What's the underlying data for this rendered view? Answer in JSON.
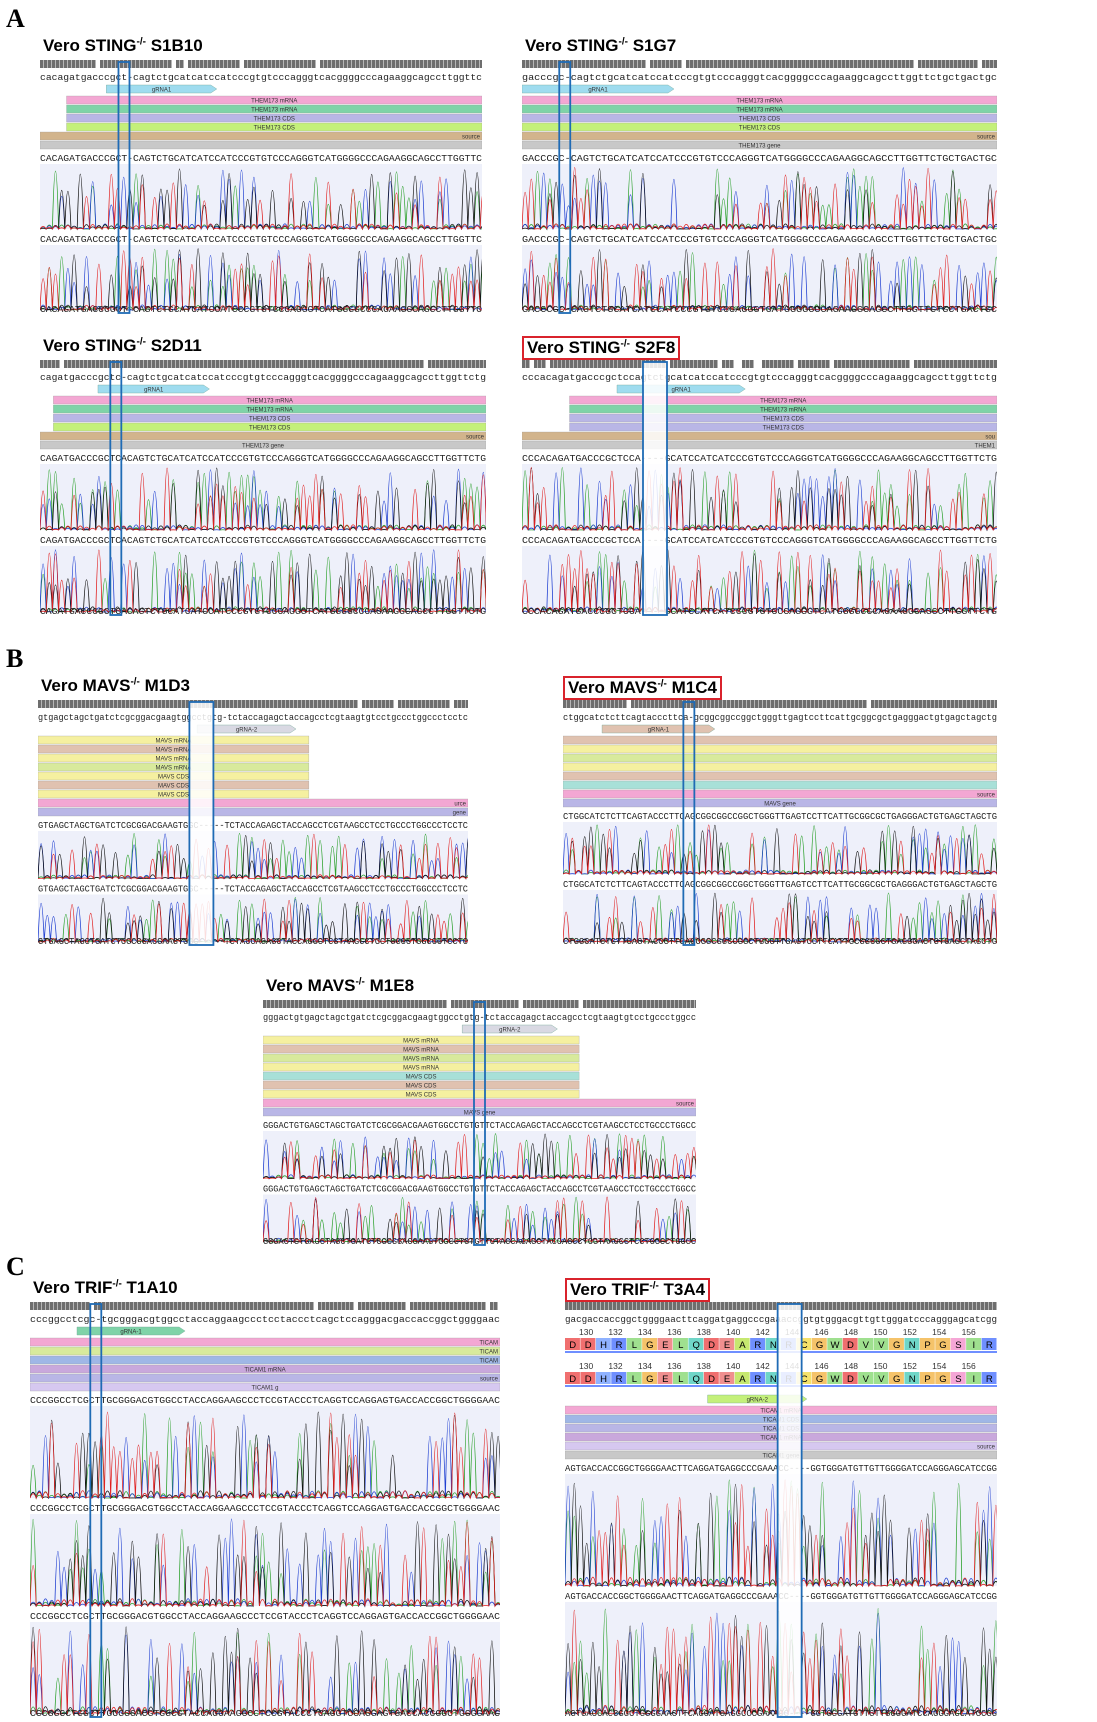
{
  "figure": {
    "sections": [
      {
        "letter": "A"
      },
      {
        "letter": "B"
      },
      {
        "letter": "C"
      }
    ],
    "colors": {
      "trace_a": "#2aa02a",
      "trace_c": "#1f3fd1",
      "trace_g": "#111111",
      "trace_t": "#e02020",
      "highlight_box": "#d9232c",
      "indel_box": "#1f6bb5",
      "grna": "#9fdcef",
      "mrna_pink": "#f3a7d3",
      "mrna_green": "#7fd3a8",
      "cds_lavender": "#b9b6e6",
      "cds_lime": "#c4f07a",
      "source_tan": "#d2b48c",
      "gene_grey": "#c8c8c8"
    },
    "panels": [
      {
        "id": "sting-s1b10",
        "section": "A",
        "highlighted": false,
        "title": {
          "pre": "Vero STING",
          "sup": "-/-",
          "post": " S1B10"
        },
        "ref_seq": "cacagatgacccgct-cagtctgcatcatccatcccgtgtcccagggtcacggggcccagaaggcagccttggttc",
        "read_seq": "CACAGATGACCCGCT-CAGTCTGCATCATCCATCCCGTGTCCCAGGGTCATGGGGCCCAGAAGGCAGCCTTGGTTC",
        "features": [
          {
            "label": "gRNA1",
            "color": "#9fdcef",
            "start": 0.15,
            "end": 0.4,
            "arrow": true
          },
          {
            "label": "THEM173 mRNA",
            "color": "#f3a7d3",
            "start": 0.06,
            "end": 1.0
          },
          {
            "label": "THEM173 mRNA",
            "color": "#7fd3a8",
            "start": 0.06,
            "end": 1.0
          },
          {
            "label": "THEM173 CDS",
            "color": "#b9b6e6",
            "start": 0.06,
            "end": 1.0
          },
          {
            "label": "THEM173 CDS",
            "color": "#c4f07a",
            "start": 0.06,
            "end": 1.0
          },
          {
            "label": "source",
            "color": "#d2b48c",
            "start": 0.0,
            "end": 1.0
          },
          {
            "label": "",
            "color": "#c8c8c8",
            "start": 0.0,
            "end": 1.0
          }
        ]
      },
      {
        "id": "sting-s1g7",
        "section": "A",
        "highlighted": false,
        "title": {
          "pre": "Vero STING",
          "sup": "-/-",
          "post": " S1G7"
        },
        "ref_seq": "gacccgc-cagtctgcatcatccatcccgtgtcccagggtcacggggcccagaaggcagccttggttctgctgactgc",
        "read_seq": "GACCCGC-CAGTCTGCATCATCCATCCCGTGTCCCAGGGTCATGGGGCCCAGAAGGCAGCCTTGGTTCTGCTGACTGC",
        "features": [
          {
            "label": "gRNA1",
            "color": "#9fdcef",
            "start": 0.0,
            "end": 0.32,
            "arrow": true
          },
          {
            "label": "THEM173 mRNA",
            "color": "#f3a7d3",
            "start": 0.0,
            "end": 1.0
          },
          {
            "label": "THEM173 mRNA",
            "color": "#7fd3a8",
            "start": 0.0,
            "end": 1.0
          },
          {
            "label": "THEM173 CDS",
            "color": "#b9b6e6",
            "start": 0.0,
            "end": 1.0
          },
          {
            "label": "THEM173 CDS",
            "color": "#c4f07a",
            "start": 0.0,
            "end": 1.0
          },
          {
            "label": "source",
            "color": "#d2b48c",
            "start": 0.0,
            "end": 1.0
          },
          {
            "label": "THEM173 gene",
            "color": "#c8c8c8",
            "start": 0.0,
            "end": 1.0
          }
        ]
      },
      {
        "id": "sting-s2d11",
        "section": "A",
        "highlighted": false,
        "title": {
          "pre": "Vero STING",
          "sup": "-/-",
          "post": " S2D11"
        },
        "ref_seq": "cagatgacccgctc-cagtctgcatcatccatcccgtgtcccagggtcacggggcccagaaggcagccttggttctg",
        "read_seq": "CAGATGACCCGCTCACAGTCTGCATCATCCATCCCGTGTCCCAGGGTCATGGGGCCCAGAAGGCAGCCTTGGTTCTG",
        "features": [
          {
            "label": "gRNA1",
            "color": "#9fdcef",
            "start": 0.13,
            "end": 0.38,
            "arrow": true
          },
          {
            "label": "THEM173 mRNA",
            "color": "#f3a7d3",
            "start": 0.03,
            "end": 1.0
          },
          {
            "label": "THEM173 mRNA",
            "color": "#7fd3a8",
            "start": 0.03,
            "end": 1.0
          },
          {
            "label": "THEM173 CDS",
            "color": "#b9b6e6",
            "start": 0.03,
            "end": 1.0
          },
          {
            "label": "THEM173 CDS",
            "color": "#c4f07a",
            "start": 0.03,
            "end": 1.0
          },
          {
            "label": "source",
            "color": "#d2b48c",
            "start": 0.0,
            "end": 1.0
          },
          {
            "label": "THEM173 gene",
            "color": "#c8c8c8",
            "start": 0.0,
            "end": 1.0
          }
        ]
      },
      {
        "id": "sting-s2f8",
        "section": "A",
        "highlighted": true,
        "title": {
          "pre": "Vero STING",
          "sup": "-/-",
          "post": " S2F8"
        },
        "ref_seq": "cccacagatgacccgctccagtctgcatcatccatcccgtgtcccagggtcacggggcccagaaggcagccttggttctg",
        "read_seq": "CCCACAGATGACCCGCTCCA----GCATCCATCATCCCGTGTCCCAGGGTCATGGGGCCCAGAAGGCAGCCTTGGTTCTG",
        "features": [
          {
            "label": "gRNA1",
            "color": "#9fdcef",
            "start": 0.2,
            "end": 0.47,
            "arrow": true
          },
          {
            "label": "THEM173 mRNA",
            "color": "#f3a7d3",
            "start": 0.1,
            "end": 1.0
          },
          {
            "label": "THEM173 mRNA",
            "color": "#7fd3a8",
            "start": 0.1,
            "end": 1.0
          },
          {
            "label": "THEM173 CDS",
            "color": "#b9b6e6",
            "start": 0.1,
            "end": 1.0
          },
          {
            "label": "THEM173 CDS",
            "color": "#b9b6e6",
            "start": 0.1,
            "end": 1.0
          },
          {
            "label": "sou",
            "color": "#d2b48c",
            "start": 0.0,
            "end": 1.0
          },
          {
            "label": "THEM1",
            "color": "#c8c8c8",
            "start": 0.0,
            "end": 1.0
          }
        ]
      },
      {
        "id": "mavs-m1d3",
        "section": "B",
        "highlighted": false,
        "title": {
          "pre": "Vero MAVS",
          "sup": "-/-",
          "post": " M1D3"
        },
        "ref_seq": "gtgagctagctgatctcgcggacgaagtggcctgtg-tctaccagagctaccagcctcgtaagtgtcctgccctggccctcctc",
        "read_seq": "GTGAGCTAGCTGATCTCGCGGACGAAGTGGC-----TCTACCAGAGCTACCAGCCTCGTAAGCCTCCTGCCCTGGCCCTCCTC",
        "features": [
          {
            "label": "gRNA-2",
            "color": "#d9d9e3",
            "start": 0.37,
            "end": 0.6,
            "arrow": true
          },
          {
            "label": "MAVS mRNA",
            "color": "#f5f0a0",
            "start": 0.0,
            "end": 0.63
          },
          {
            "label": "MAVS mRNA",
            "color": "#e0c2b0",
            "start": 0.0,
            "end": 0.63
          },
          {
            "label": "MAVS mRNA",
            "color": "#f5f0a0",
            "start": 0.0,
            "end": 0.63
          },
          {
            "label": "MAVS mRNA",
            "color": "#d8ea9c",
            "start": 0.0,
            "end": 0.63
          },
          {
            "label": "MAVS CDS",
            "color": "#f5f0a0",
            "start": 0.0,
            "end": 0.63
          },
          {
            "label": "MAVS CDS",
            "color": "#e0c2b0",
            "start": 0.0,
            "end": 0.63
          },
          {
            "label": "MAVS CDS",
            "color": "#f5f0a0",
            "start": 0.0,
            "end": 0.63
          },
          {
            "label": "urce",
            "color": "#f3a7d3",
            "start": 0.0,
            "end": 1.0
          },
          {
            "label": "gene",
            "color": "#b9b6e6",
            "start": 0.0,
            "end": 1.0
          }
        ]
      },
      {
        "id": "mavs-m1c4",
        "section": "B",
        "highlighted": true,
        "title": {
          "pre": "Vero MAVS",
          "sup": "-/-",
          "post": " M1C4"
        },
        "ref_seq": "ctggcatctcttcagtacccttca-gcggcggccggctgggttgagtccttcattgcggcgctgagggactgtgagctagctg",
        "read_seq": "CTGGCATCTCTTCAGTACCCTTCAGCGGCGGCCGGCTGGGTTGAGTCCTTCATTGCGGCGCTGAGGGACTGTGAGCTAGCTG",
        "features": [
          {
            "label": "gRNA-1",
            "color": "#e0c2b0",
            "start": 0.09,
            "end": 0.35,
            "arrow": true
          },
          {
            "label": "",
            "color": "#e0c2b0",
            "start": 0.0,
            "end": 1.0
          },
          {
            "label": "",
            "color": "#f5f0a0",
            "start": 0.0,
            "end": 1.0
          },
          {
            "label": "",
            "color": "#d8ea9c",
            "start": 0.0,
            "end": 1.0
          },
          {
            "label": "",
            "color": "#f5f0a0",
            "start": 0.0,
            "end": 1.0
          },
          {
            "label": "",
            "color": "#e0c2b0",
            "start": 0.0,
            "end": 1.0
          },
          {
            "label": "",
            "color": "#a8e0d8",
            "start": 0.0,
            "end": 1.0
          },
          {
            "label": "source",
            "color": "#f3a7d3",
            "start": 0.0,
            "end": 1.0
          },
          {
            "label": "MAVS gene",
            "color": "#b9b6e6",
            "start": 0.0,
            "end": 1.0
          }
        ]
      },
      {
        "id": "mavs-m1e8",
        "section": "B",
        "highlighted": false,
        "title": {
          "pre": "Vero MAVS",
          "sup": "-/-",
          "post": " M1E8"
        },
        "ref_seq": "gggactgtgagctagctgatctcgcggacgaagtggcctgtg-tctaccagagctaccagcctcgtaagtgtcctgccctggcc",
        "read_seq": "GGGACTGTGAGCTAGCTGATCTCGCGGACGAAGTGGCCTGTGTTCTACCAGAGCTACCAGCCTCGTAAGCCTCCTGCCCTGGCC",
        "features": [
          {
            "label": "gRNA-2",
            "color": "#d9d9e3",
            "start": 0.46,
            "end": 0.68,
            "arrow": true
          },
          {
            "label": "MAVS mRNA",
            "color": "#f5f0a0",
            "start": 0.0,
            "end": 0.73
          },
          {
            "label": "MAVS mRNA",
            "color": "#e0c2b0",
            "start": 0.0,
            "end": 0.73
          },
          {
            "label": "MAVS mRNA",
            "color": "#d8ea9c",
            "start": 0.0,
            "end": 0.73
          },
          {
            "label": "MAVS mRNA",
            "color": "#f5f0a0",
            "start": 0.0,
            "end": 0.73
          },
          {
            "label": "MAVS CDS",
            "color": "#a8e0d8",
            "start": 0.0,
            "end": 0.73
          },
          {
            "label": "MAVS CDS",
            "color": "#e0c2b0",
            "start": 0.0,
            "end": 0.73
          },
          {
            "label": "MAVS CDS",
            "color": "#f5f0a0",
            "start": 0.0,
            "end": 0.73
          },
          {
            "label": "source",
            "color": "#f3a7d3",
            "start": 0.0,
            "end": 1.0
          },
          {
            "label": "MAVS gene",
            "color": "#b9b6e6",
            "start": 0.0,
            "end": 1.0
          }
        ]
      },
      {
        "id": "trif-t1a10",
        "section": "C",
        "highlighted": false,
        "title": {
          "pre": "Vero TRIF",
          "sup": "-/-",
          "post": " T1A10"
        },
        "ref_seq": "cccggcctcgc-tgcgggacgtggcctaccaggaagccctcctaccctcagctccagggacgaccaccggctggggaac",
        "read_seq": "CCCGGCCTCGCTTGCGGGACGTGGCCTACCAGGAAGCCCTCCGTACCCTCAGGTCCAGGAGTGACCACCGGCTGGGGAAC",
        "features": [
          {
            "label": "gRNA-1",
            "color": "#7fd3a8",
            "start": 0.1,
            "end": 0.33,
            "arrow": true
          },
          {
            "label": "TICAM",
            "color": "#f3a7d3",
            "start": 0.0,
            "end": 1.0
          },
          {
            "label": "TICAM",
            "color": "#d8ea9c",
            "start": 0.0,
            "end": 1.0
          },
          {
            "label": "TICAM",
            "color": "#9fb7e6",
            "start": 0.0,
            "end": 1.0
          },
          {
            "label": "TICAM1 mRNA",
            "color": "#c9a8dc",
            "start": 0.0,
            "end": 1.0
          },
          {
            "label": "source",
            "color": "#b9b6e6",
            "start": 0.0,
            "end": 1.0
          },
          {
            "label": "TICAM1 g",
            "color": "#d6c8f0",
            "start": 0.0,
            "end": 1.0
          }
        ]
      },
      {
        "id": "trif-t3a4",
        "section": "C",
        "highlighted": true,
        "title": {
          "pre": "Vero TRIF",
          "sup": "-/-",
          "post": " T3A4"
        },
        "ref_seq": "gacgaccaccggctggggaacttcaggatgaggcccgaaaccggtgtgggacgttgttgggatcccagggagcatcgg",
        "read_seq": "AGTGACCACCGGCTGGGGAACTTCAGGATGAGGCCCGAAACC----GGTGGGATGTTGTTGGGGATCCAGGGAGCATCCGG",
        "aa_numbers": [
          "130",
          "132",
          "134",
          "136",
          "138",
          "140",
          "142",
          "144",
          "146",
          "148",
          "150",
          "152",
          "154",
          "156"
        ],
        "aa_residues": [
          "D",
          "D",
          "H",
          "R",
          "L",
          "G",
          "E",
          "L",
          "Q",
          "D",
          "E",
          "A",
          "R",
          "N",
          "R",
          "C",
          "G",
          "W",
          "D",
          "V",
          "V",
          "G",
          "N",
          "P",
          "G",
          "S",
          "I",
          "R"
        ],
        "features": [
          {
            "label": "gRNA-2",
            "color": "#c4f07a",
            "start": 0.33,
            "end": 0.56,
            "arrow": true
          },
          {
            "label": "TICAM1 mRNA",
            "color": "#f3a7d3",
            "start": 0.0,
            "end": 1.0
          },
          {
            "label": "TICAM1 CDS",
            "color": "#9fb7e6",
            "start": 0.0,
            "end": 1.0
          },
          {
            "label": "TICAM1 CDS",
            "color": "#b9b6e6",
            "start": 0.0,
            "end": 1.0
          },
          {
            "label": "TICAM1 mRNA",
            "color": "#c9a8dc",
            "start": 0.0,
            "end": 1.0
          },
          {
            "label": "source",
            "color": "#d6c8f0",
            "start": 0.0,
            "end": 1.0
          },
          {
            "label": "TICAM1 gene",
            "color": "#c8c8c8",
            "start": 0.0,
            "end": 1.0
          }
        ]
      }
    ]
  }
}
